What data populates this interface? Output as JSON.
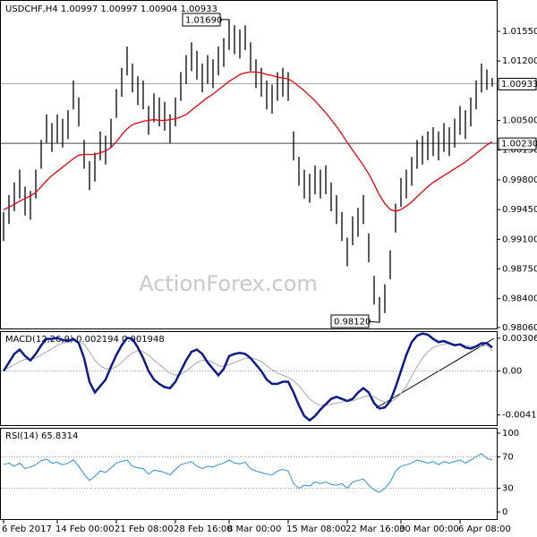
{
  "watermark": "ActionForex.com",
  "chart_data": [
    {
      "type": "ohlc",
      "title": "USDCHF,H4  1.00997 1.00997 1.00904 1.00933",
      "categories": [
        "6 Feb 2017",
        null,
        null,
        null,
        null,
        null,
        null,
        null,
        null,
        null,
        "14 Feb 00:00",
        null,
        null,
        null,
        null,
        null,
        null,
        null,
        null,
        null,
        null,
        "21 Feb 08:00",
        null,
        null,
        null,
        null,
        null,
        null,
        null,
        null,
        null,
        null,
        "28 Feb 16:00",
        null,
        null,
        null,
        null,
        null,
        null,
        null,
        null,
        null,
        "8 Mar 00:00",
        null,
        null,
        null,
        null,
        null,
        null,
        null,
        null,
        null,
        null,
        "15 Mar 08:00",
        null,
        null,
        null,
        null,
        null,
        null,
        null,
        null,
        null,
        null,
        "22 Mar 16:00",
        null,
        null,
        null,
        null,
        null,
        null,
        null,
        null,
        null,
        "30 Mar 00:00",
        null,
        null,
        null,
        null,
        null,
        null,
        null,
        null,
        null,
        null,
        "6 Apr 08:00",
        null,
        null,
        null,
        null,
        null,
        null
      ],
      "high": [
        0.9942,
        0.9962,
        0.9977,
        0.9992,
        0.9972,
        0.9967,
        0.9992,
        1.0027,
        1.0057,
        1.0047,
        1.0057,
        1.0052,
        1.0062,
        1.0097,
        1.0077,
        1.0027,
        1.0002,
        1.0012,
        1.0037,
        1.0032,
        1.0052,
        1.0087,
        1.0112,
        1.0137,
        1.0117,
        1.0102,
        1.0097,
        1.0067,
        1.0082,
        1.0077,
        1.0072,
        1.0057,
        1.0077,
        1.0107,
        1.0127,
        1.0142,
        1.0132,
        1.0117,
        1.0127,
        1.0122,
        1.0137,
        1.0147,
        1.0169,
        1.0162,
        1.0157,
        1.0162,
        1.0142,
        1.0122,
        1.0112,
        1.0097,
        1.0092,
        1.0107,
        1.0112,
        1.0107,
        1.0037,
        1.0007,
        0.9992,
        0.9987,
        0.9997,
        0.9992,
        0.9997,
        0.9977,
        0.9962,
        0.9942,
        0.9912,
        0.9937,
        0.9947,
        0.9962,
        0.9917,
        0.9867,
        0.9842,
        0.9857,
        0.9897,
        0.9952,
        0.9982,
        0.9992,
        1.0007,
        1.0027,
        1.0032,
        1.0037,
        1.0042,
        1.0037,
        1.0047,
        1.0042,
        1.0052,
        1.0067,
        1.0062,
        1.0077,
        1.0097,
        1.0117,
        1.011,
        1.01
      ],
      "low": [
        0.9908,
        0.9928,
        0.9943,
        0.9958,
        0.9938,
        0.9933,
        0.9958,
        0.9993,
        1.0023,
        1.0013,
        1.0023,
        1.0018,
        1.0028,
        1.0063,
        1.0043,
        0.9993,
        0.9968,
        0.9978,
        1.0003,
        0.9998,
        1.0018,
        1.0053,
        1.0078,
        1.0103,
        1.0083,
        1.0068,
        1.0063,
        1.0033,
        1.0048,
        1.0043,
        1.0038,
        1.0023,
        1.0043,
        1.0073,
        1.0093,
        1.0108,
        1.0098,
        1.0083,
        1.0093,
        1.0088,
        1.0103,
        1.0113,
        1.0133,
        1.0128,
        1.0123,
        1.0133,
        1.0108,
        1.0088,
        1.0078,
        1.0063,
        1.0058,
        1.0073,
        1.0078,
        1.0073,
        1.0003,
        0.9973,
        0.9958,
        0.9953,
        0.9963,
        0.9958,
        0.9963,
        0.9943,
        0.9928,
        0.9908,
        0.9878,
        0.9903,
        0.9913,
        0.9928,
        0.9883,
        0.9833,
        0.9812,
        0.9823,
        0.9863,
        0.9918,
        0.9948,
        0.9958,
        0.9973,
        0.9993,
        0.9998,
        1.0003,
        1.0008,
        1.0003,
        1.0013,
        1.0008,
        1.0018,
        1.0033,
        1.0028,
        1.0043,
        1.0063,
        1.0083,
        1.0086,
        1.009
      ],
      "color": "#000000",
      "ma": {
        "color": "#e8000b",
        "values": [
          0.99445,
          0.9948,
          0.9951,
          0.9955,
          0.9958,
          0.9961,
          0.9965,
          0.9972,
          0.9979,
          0.9985,
          0.999,
          0.9995,
          1.0,
          1.0005,
          1.0009,
          1.001,
          1.001,
          1.001,
          1.0012,
          1.0014,
          1.0018,
          1.0025,
          1.0033,
          1.004,
          1.0045,
          1.0047,
          1.0049,
          1.005,
          1.0051,
          1.005,
          1.005,
          1.0051,
          1.0052,
          1.0054,
          1.0057,
          1.0062,
          1.0067,
          1.0072,
          1.0077,
          1.0081,
          1.0086,
          1.0091,
          1.0096,
          1.01,
          1.0104,
          1.0106,
          1.0107,
          1.0107,
          1.0106,
          1.0104,
          1.0103,
          1.0101,
          1.01,
          1.0099,
          1.0095,
          1.009,
          1.0085,
          1.0079,
          1.0073,
          1.0066,
          1.0059,
          1.0051,
          1.0043,
          1.0034,
          1.0024,
          1.0015,
          1.0006,
          0.9997,
          0.9987,
          0.9975,
          0.9962,
          0.9952,
          0.9945,
          0.9943,
          0.9945,
          0.9949,
          0.9954,
          0.996,
          0.9966,
          0.9972,
          0.9977,
          0.9981,
          0.9985,
          0.9989,
          0.9993,
          0.9997,
          1.0001,
          1.0006,
          1.0011,
          1.0016,
          1.0021,
          1.0025
        ]
      },
      "ylim": [
        0.98049,
        1.01908
      ],
      "yticks": [
        {
          "value": 1.0155,
          "label": "1.01550"
        },
        {
          "value": 1.012,
          "label": "1.01200"
        },
        {
          "value": 1.005,
          "label": "1.00500"
        },
        {
          "value": 1.0015,
          "label": "1.00150"
        },
        {
          "value": 0.998,
          "label": "0.99800"
        },
        {
          "value": 0.9945,
          "label": "0.99450"
        },
        {
          "value": 0.991,
          "label": "0.99100"
        },
        {
          "value": 0.9875,
          "label": "0.98750"
        },
        {
          "value": 0.984,
          "label": "0.98400"
        },
        {
          "value": 0.9806,
          "label": "0.98060"
        }
      ],
      "current_price": 1.00933,
      "level_line": {
        "value": 1.0023,
        "label": "1.00230"
      },
      "high_label": {
        "value": 1.0169,
        "label": "1.01690"
      },
      "low_label": {
        "value": 0.9812,
        "label": "0.98120"
      }
    },
    {
      "type": "macd",
      "title": "MACD(12,26,9) 0.002194 0.001948",
      "macd": {
        "color": "#0d1a8c",
        "values": [
          0.0,
          0.0008,
          0.0016,
          0.002,
          0.0014,
          0.001,
          0.0016,
          0.0024,
          0.003,
          0.003,
          0.0031,
          0.0029,
          0.0028,
          0.003,
          0.0026,
          0.0012,
          -0.001,
          -0.002,
          -0.0014,
          -0.0008,
          0.0004,
          0.0015,
          0.0024,
          0.0031,
          0.003,
          0.0022,
          0.0012,
          0.0,
          -0.0008,
          -0.0012,
          -0.0015,
          -0.0016,
          -0.001,
          0.0,
          0.001,
          0.0018,
          0.002,
          0.0016,
          0.0008,
          0.0002,
          -0.0004,
          0.0002,
          0.0014,
          0.0016,
          0.0017,
          0.0016,
          0.0012,
          0.0006,
          0.0,
          -0.0008,
          -0.0012,
          -0.0012,
          -0.001,
          -0.001,
          -0.002,
          -0.0032,
          -0.0042,
          -0.0046,
          -0.0042,
          -0.0036,
          -0.0031,
          -0.0026,
          -0.0024,
          -0.0026,
          -0.0028,
          -0.0026,
          -0.002,
          -0.0016,
          -0.002,
          -0.003,
          -0.0035,
          -0.0034,
          -0.0028,
          -0.0015,
          0.0,
          0.0015,
          0.0027,
          0.0033,
          0.0035,
          0.0034,
          0.003,
          0.0027,
          0.0028,
          0.0026,
          0.0024,
          0.0025,
          0.0022,
          0.0021,
          0.0023,
          0.0026,
          0.0026,
          0.0022
        ]
      },
      "signal": {
        "color": "#a8a8a8",
        "values": [
          0.0002,
          0.0003,
          0.0006,
          0.0009,
          0.0011,
          0.0011,
          0.0012,
          0.0015,
          0.0018,
          0.0021,
          0.0024,
          0.0026,
          0.0027,
          0.0028,
          0.0028,
          0.0025,
          0.0018,
          0.001,
          0.0005,
          0.0002,
          0.0002,
          0.0004,
          0.0008,
          0.0013,
          0.0017,
          0.0019,
          0.0018,
          0.0015,
          0.001,
          0.0006,
          0.0002,
          -0.0002,
          -0.0004,
          -0.0003,
          0.0,
          0.0004,
          0.0008,
          0.001,
          0.001,
          0.0008,
          0.0005,
          0.0004,
          0.0006,
          0.0008,
          0.001,
          0.0012,
          0.0012,
          0.0011,
          0.0009,
          0.0005,
          0.0001,
          -0.0002,
          -0.0004,
          -0.0006,
          -0.0009,
          -0.0014,
          -0.002,
          -0.0026,
          -0.003,
          -0.0032,
          -0.0032,
          -0.0031,
          -0.003,
          -0.0029,
          -0.0028,
          -0.0028,
          -0.0026,
          -0.0024,
          -0.0023,
          -0.0024,
          -0.0027,
          -0.0029,
          -0.0029,
          -0.0026,
          -0.0021,
          -0.0014,
          -0.0005,
          0.0004,
          0.0012,
          0.0018,
          0.0022,
          0.0024,
          0.0025,
          0.0026,
          0.0025,
          0.0025,
          0.0024,
          0.0023,
          0.0023,
          0.0023,
          0.0024,
          0.0019
        ]
      },
      "ylim": [
        -0.00505,
        0.00364
      ],
      "yticks": [
        0.003063,
        {
          "value": 0,
          "label": "0.00"
        },
        -0.004104
      ]
    },
    {
      "type": "rsi",
      "title": "RSI(14) 65.8314",
      "color": "#2f8fdc",
      "values": [
        60,
        62,
        58,
        62,
        55,
        57,
        60,
        65,
        67,
        62,
        63,
        60,
        62,
        66,
        58,
        48,
        40,
        45,
        52,
        50,
        56,
        62,
        64,
        66,
        58,
        56,
        55,
        48,
        53,
        52,
        50,
        47,
        54,
        60,
        62,
        64,
        58,
        55,
        58,
        57,
        60,
        62,
        66,
        62,
        61,
        63,
        55,
        52,
        50,
        48,
        47,
        52,
        54,
        52,
        36,
        30,
        34,
        33,
        38,
        36,
        38,
        35,
        34,
        36,
        30,
        38,
        40,
        42,
        34,
        28,
        25,
        30,
        38,
        52,
        58,
        60,
        62,
        66,
        64,
        62,
        64,
        60,
        64,
        62,
        64,
        66,
        62,
        66,
        70,
        74,
        68,
        66
      ],
      "ylim": [
        -9,
        105.6
      ],
      "yticks": [
        100,
        70,
        30,
        0
      ]
    }
  ]
}
